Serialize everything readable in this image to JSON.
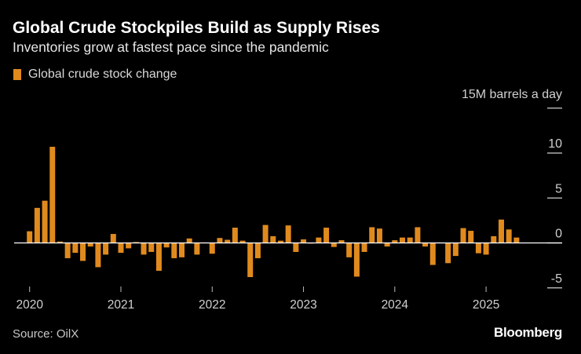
{
  "title": "Global Crude Stockpiles Build as Supply Rises",
  "subtitle": "Inventories grow at fastest pace since the pandemic",
  "source": "Source: OilX",
  "brand": "Bloomberg",
  "colors": {
    "bar": "#e08a1e",
    "background": "#000000",
    "axis": "#ffffff"
  },
  "chart_data": {
    "type": "bar",
    "series": [
      {
        "name": "Global crude stock change",
        "values": [
          1.3,
          3.9,
          4.7,
          10.7,
          0.15,
          -1.7,
          -1.1,
          -2.0,
          -0.4,
          -2.7,
          -1.3,
          1.0,
          -1.1,
          -0.6,
          0.1,
          -1.3,
          -1.0,
          -3.1,
          -0.5,
          -1.7,
          -1.6,
          0.5,
          -1.3,
          0.05,
          -1.2,
          0.55,
          0.35,
          1.7,
          0.25,
          -3.8,
          -1.7,
          2.0,
          0.75,
          0.25,
          1.95,
          -1.0,
          0.4,
          -0.05,
          0.6,
          1.7,
          -0.45,
          0.3,
          -1.6,
          -3.75,
          -1.0,
          1.75,
          1.6,
          -0.4,
          0.3,
          0.6,
          0.6,
          1.75,
          -0.4,
          -2.45,
          0.05,
          -2.25,
          -1.45,
          1.65,
          1.35,
          -1.15,
          -1.3,
          0.75,
          2.6,
          1.5,
          0.6
        ]
      }
    ],
    "x_start": "2020-01",
    "x_frequency": "monthly",
    "x_ticks": [
      "2020",
      "2021",
      "2022",
      "2023",
      "2024",
      "2025"
    ],
    "y_ticks": [
      "15M barrels a day",
      "10",
      "5",
      "0",
      "-5"
    ],
    "y_tick_values": [
      15,
      10,
      5,
      0,
      -5
    ],
    "ylim": [
      -5,
      15
    ],
    "ylabel": "15M barrels a day",
    "legend": "top-left",
    "grid": false
  }
}
